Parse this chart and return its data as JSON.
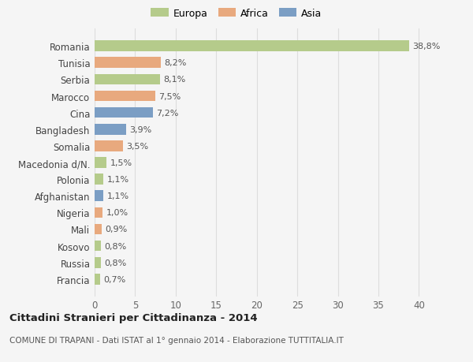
{
  "countries": [
    "Francia",
    "Russia",
    "Kosovo",
    "Mali",
    "Nigeria",
    "Afghanistan",
    "Polonia",
    "Macedonia d/N.",
    "Somalia",
    "Bangladesh",
    "Cina",
    "Marocco",
    "Serbia",
    "Tunisia",
    "Romania"
  ],
  "values": [
    0.7,
    0.8,
    0.8,
    0.9,
    1.0,
    1.1,
    1.1,
    1.5,
    3.5,
    3.9,
    7.2,
    7.5,
    8.1,
    8.2,
    38.8
  ],
  "labels": [
    "0,7%",
    "0,8%",
    "0,8%",
    "0,9%",
    "1,0%",
    "1,1%",
    "1,1%",
    "1,5%",
    "3,5%",
    "3,9%",
    "7,2%",
    "7,5%",
    "8,1%",
    "8,2%",
    "38,8%"
  ],
  "continents": [
    "Europa",
    "Europa",
    "Europa",
    "Africa",
    "Africa",
    "Asia",
    "Europa",
    "Europa",
    "Africa",
    "Asia",
    "Asia",
    "Africa",
    "Europa",
    "Africa",
    "Europa"
  ],
  "colors": {
    "Europa": "#b5cb8b",
    "Africa": "#e8a97e",
    "Asia": "#7b9ec4"
  },
  "title": "Cittadini Stranieri per Cittadinanza - 2014",
  "subtitle": "COMUNE DI TRAPANI - Dati ISTAT al 1° gennaio 2014 - Elaborazione TUTTITALIA.IT",
  "xlim": [
    0,
    42
  ],
  "xticks": [
    0,
    5,
    10,
    15,
    20,
    25,
    30,
    35,
    40
  ],
  "background_color": "#f5f5f5",
  "grid_color": "#dddddd",
  "legend_labels": [
    "Europa",
    "Africa",
    "Asia"
  ],
  "legend_colors": [
    "#b5cb8b",
    "#e8a97e",
    "#7b9ec4"
  ]
}
